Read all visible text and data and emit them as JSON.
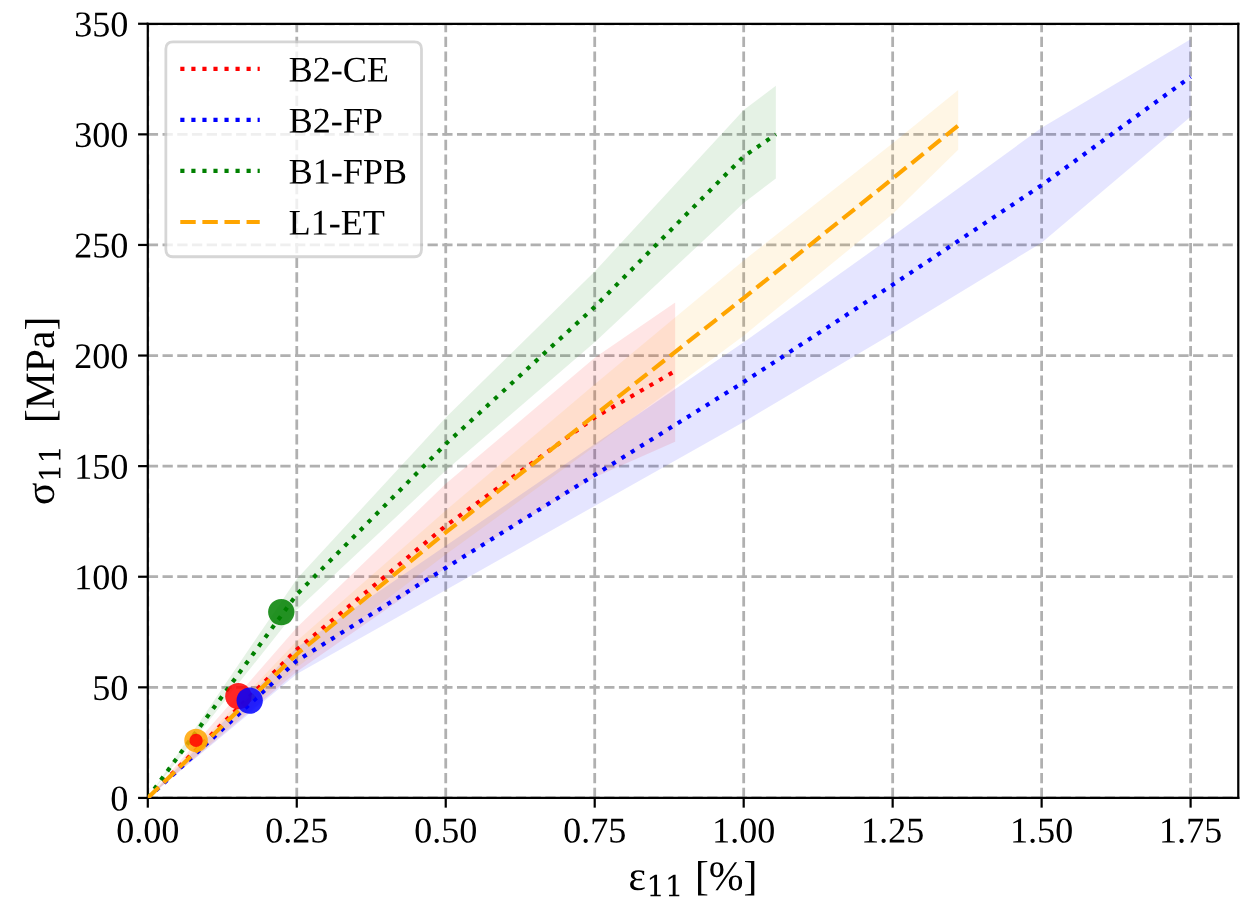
{
  "chart_data": {
    "type": "line",
    "xlabel": "ε$_{11}$ [%]",
    "ylabel": "σ$_{11}$  [MPa]",
    "xlim": [
      0,
      1.83
    ],
    "ylim": [
      0,
      350
    ],
    "xticks": [
      {
        "value": 0,
        "label": "0.00"
      },
      0.25,
      {
        "value": 0.5,
        "label": "0.50"
      },
      0.75,
      {
        "value": 1,
        "label": "1.00"
      },
      1.25,
      {
        "value": 1.5,
        "label": "1.50"
      },
      1.75
    ],
    "yticks": [
      0,
      50,
      100,
      150,
      200,
      250,
      300,
      350
    ],
    "grid": true,
    "legend": "top left",
    "series": [
      {
        "name": "B2-CE",
        "color": "#ff0000",
        "line_style": "dotted",
        "x": [
          0,
          0.25,
          0.5,
          0.75,
          0.885
        ],
        "values": [
          0,
          67,
          123,
          172,
          193
        ],
        "lower": [
          0,
          57,
          104,
          145,
          161
        ],
        "upper": [
          0,
          77,
          142,
          199,
          224
        ]
      },
      {
        "name": "B2-FP",
        "color": "#0000ff",
        "line_style": "dotted",
        "x": [
          0,
          0.25,
          0.5,
          0.75,
          1.0,
          1.25,
          1.5,
          1.75
        ],
        "values": [
          0,
          62,
          104,
          146,
          188,
          232,
          277,
          326
        ],
        "lower": [
          0,
          56,
          94,
          132,
          170,
          210,
          251,
          308
        ],
        "upper": [
          0,
          68,
          114,
          160,
          206,
          254,
          303,
          343
        ]
      },
      {
        "name": "B1-FPB",
        "color": "#008000",
        "line_style": "dotted",
        "x": [
          0,
          0.25,
          0.5,
          0.75,
          1.0,
          1.054
        ],
        "values": [
          0,
          92,
          160,
          222,
          290,
          300
        ],
        "lower": [
          0,
          85,
          148,
          206,
          269,
          280
        ],
        "upper": [
          0,
          99,
          172,
          238,
          311,
          322
        ]
      },
      {
        "name": "L1-ET",
        "color": "#ffa500",
        "line_style": "dashed",
        "x": [
          0,
          0.25,
          0.5,
          0.75,
          1.0,
          1.25,
          1.36
        ],
        "values": [
          0,
          65,
          120,
          173,
          226,
          280,
          304
        ],
        "lower": [
          0,
          59,
          110,
          159,
          209,
          264,
          293
        ],
        "upper": [
          0,
          71,
          130,
          187,
          243,
          296,
          320
        ]
      },
      {
        "type": "scatter",
        "marker": "circle",
        "x": [
          0.081,
          0.081,
          0.152,
          0.171,
          0.224
        ],
        "values": [
          26,
          26,
          46,
          44,
          84
        ],
        "colors": [
          "#ffa500",
          "#ff0000",
          "#ff0000",
          "#0000ff",
          "#008000"
        ],
        "sizes": [
          0.8,
          0.25,
          1,
          1,
          1
        ]
      }
    ]
  }
}
